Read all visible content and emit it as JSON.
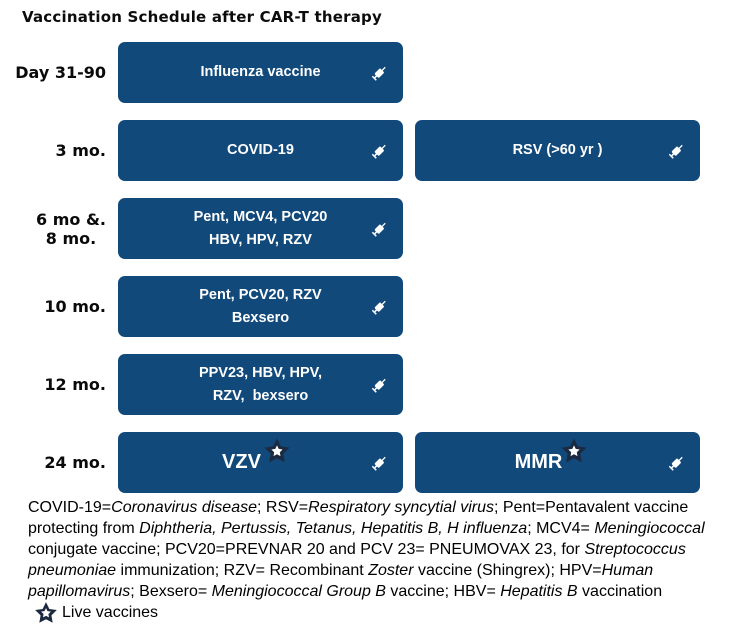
{
  "title": "Vaccination Schedule after CAR-T therapy",
  "colors": {
    "box_blue": "#11497B",
    "star_navy": "#1B2A40",
    "text_white": "#FFFFFF",
    "text_black": "#000000"
  },
  "rows": [
    {
      "label_lines": [
        "Day 31-90"
      ],
      "boxes": [
        {
          "col": 1,
          "lines": [
            "Influenza vaccine"
          ],
          "star": false
        }
      ]
    },
    {
      "label_lines": [
        "3 mo."
      ],
      "boxes": [
        {
          "col": 1,
          "lines": [
            "COVID-19"
          ],
          "star": false
        },
        {
          "col": 2,
          "lines": [
            "RSV (>60 yr )"
          ],
          "star": false
        }
      ]
    },
    {
      "label_lines": [
        "6 mo &.",
        "8 mo."
      ],
      "boxes": [
        {
          "col": 1,
          "lines": [
            "Pent, MCV4, PCV20",
            "HBV, HPV, RZV"
          ],
          "star": false
        }
      ]
    },
    {
      "label_lines": [
        "10 mo."
      ],
      "boxes": [
        {
          "col": 1,
          "lines": [
            "Pent, PCV20, RZV",
            "Bexsero"
          ],
          "star": false
        }
      ]
    },
    {
      "label_lines": [
        "12 mo."
      ],
      "boxes": [
        {
          "col": 1,
          "lines": [
            "PPV23, HBV, HPV,",
            "RZV,  bexsero"
          ],
          "star": false
        }
      ]
    },
    {
      "label_lines": [
        "24 mo."
      ],
      "boxes": [
        {
          "col": 1,
          "lines": [
            "VZV"
          ],
          "star": true
        },
        {
          "col": 2,
          "lines": [
            "MMR"
          ],
          "star": true
        }
      ]
    }
  ],
  "icons": {
    "syringe": "syringe-icon",
    "live_vaccine_star": "live-vaccine-star-icon"
  },
  "footnote": {
    "lines": [
      [
        {
          "text": "COVID-19=",
          "italic": false
        },
        {
          "text": "Coronavirus disease",
          "italic": true
        },
        {
          "text": "; RSV=",
          "italic": false
        },
        {
          "text": "Respiratory syncytial virus",
          "italic": true
        },
        {
          "text": "; Pent=Pentavalent vaccine",
          "italic": false
        }
      ],
      [
        {
          "text": "protecting from ",
          "italic": false
        },
        {
          "text": "Diphtheria, Pertussis, Tetanus, Hepatitis B, H influenza",
          "italic": true
        },
        {
          "text": "; MCV4= ",
          "italic": false
        },
        {
          "text": "Meningiococcal",
          "italic": true
        }
      ],
      [
        {
          "text": "conjugate vaccine; PCV20=PREVNAR 20 and PCV 23= PNEUMOVAX 23, for ",
          "italic": false
        },
        {
          "text": "Streptococcus",
          "italic": true
        }
      ],
      [
        {
          "text": "pneumoniae",
          "italic": true
        },
        {
          "text": " immunization; RZV= Recombinant ",
          "italic": false
        },
        {
          "text": "Zoster",
          "italic": true
        },
        {
          "text": " vaccine (Shingrex); HPV=",
          "italic": false
        },
        {
          "text": "Human",
          "italic": true
        }
      ],
      [
        {
          "text": "papillomavirus",
          "italic": true
        },
        {
          "text": "; Bexsero= ",
          "italic": false
        },
        {
          "text": "Meningiococcal Group B",
          "italic": true
        },
        {
          "text": " vaccine; HBV= ",
          "italic": false
        },
        {
          "text": "Hepatitis B",
          "italic": true
        },
        {
          "text": " vaccination",
          "italic": false
        }
      ]
    ]
  },
  "legend": {
    "label": "Live vaccines"
  }
}
